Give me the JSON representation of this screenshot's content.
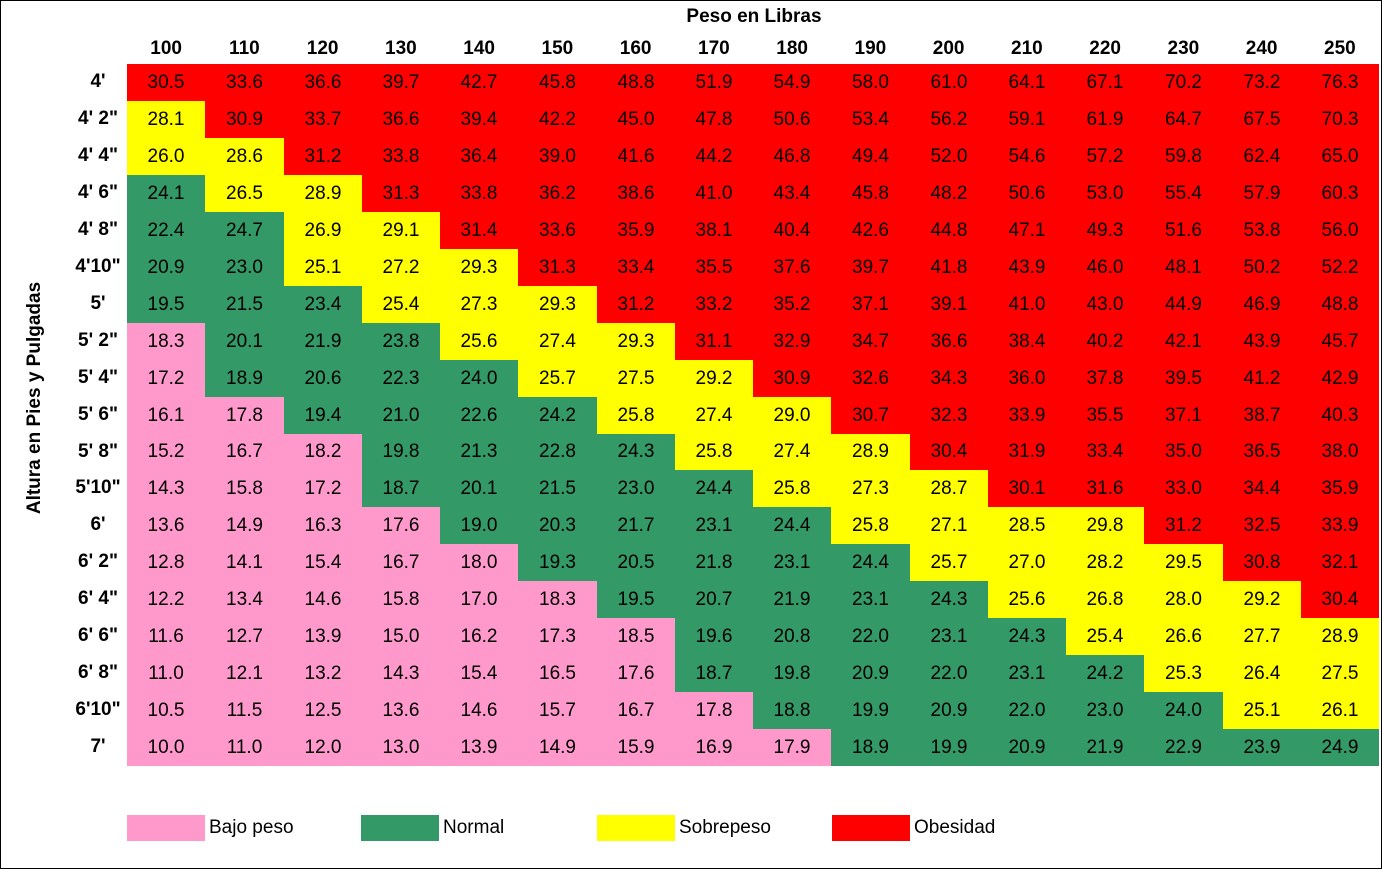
{
  "chart_data": {
    "type": "table",
    "title": "Peso en Libras",
    "ylabel": "Altura en Pies y Pulgadas",
    "columns": [
      "100",
      "110",
      "120",
      "130",
      "140",
      "150",
      "160",
      "170",
      "180",
      "190",
      "200",
      "210",
      "220",
      "230",
      "240",
      "250"
    ],
    "rows": [
      "4'",
      "4' 2\"",
      "4' 4\"",
      "4' 6\"",
      "4' 8\"",
      "4'10\"",
      "5'",
      "5' 2\"",
      "5' 4\"",
      "5' 6\"",
      "5' 8\"",
      "5'10\"",
      "6'",
      "6' 2\"",
      "6' 4\"",
      "6' 6\"",
      "6' 8\"",
      "6'10\"",
      "7'"
    ],
    "values": [
      [
        "30.5",
        "33.6",
        "36.6",
        "39.7",
        "42.7",
        "45.8",
        "48.8",
        "51.9",
        "54.9",
        "58.0",
        "61.0",
        "64.1",
        "67.1",
        "70.2",
        "73.2",
        "76.3"
      ],
      [
        "28.1",
        "30.9",
        "33.7",
        "36.6",
        "39.4",
        "42.2",
        "45.0",
        "47.8",
        "50.6",
        "53.4",
        "56.2",
        "59.1",
        "61.9",
        "64.7",
        "67.5",
        "70.3"
      ],
      [
        "26.0",
        "28.6",
        "31.2",
        "33.8",
        "36.4",
        "39.0",
        "41.6",
        "44.2",
        "46.8",
        "49.4",
        "52.0",
        "54.6",
        "57.2",
        "59.8",
        "62.4",
        "65.0"
      ],
      [
        "24.1",
        "26.5",
        "28.9",
        "31.3",
        "33.8",
        "36.2",
        "38.6",
        "41.0",
        "43.4",
        "45.8",
        "48.2",
        "50.6",
        "53.0",
        "55.4",
        "57.9",
        "60.3"
      ],
      [
        "22.4",
        "24.7",
        "26.9",
        "29.1",
        "31.4",
        "33.6",
        "35.9",
        "38.1",
        "40.4",
        "42.6",
        "44.8",
        "47.1",
        "49.3",
        "51.6",
        "53.8",
        "56.0"
      ],
      [
        "20.9",
        "23.0",
        "25.1",
        "27.2",
        "29.3",
        "31.3",
        "33.4",
        "35.5",
        "37.6",
        "39.7",
        "41.8",
        "43.9",
        "46.0",
        "48.1",
        "50.2",
        "52.2"
      ],
      [
        "19.5",
        "21.5",
        "23.4",
        "25.4",
        "27.3",
        "29.3",
        "31.2",
        "33.2",
        "35.2",
        "37.1",
        "39.1",
        "41.0",
        "43.0",
        "44.9",
        "46.9",
        "48.8"
      ],
      [
        "18.3",
        "20.1",
        "21.9",
        "23.8",
        "25.6",
        "27.4",
        "29.3",
        "31.1",
        "32.9",
        "34.7",
        "36.6",
        "38.4",
        "40.2",
        "42.1",
        "43.9",
        "45.7"
      ],
      [
        "17.2",
        "18.9",
        "20.6",
        "22.3",
        "24.0",
        "25.7",
        "27.5",
        "29.2",
        "30.9",
        "32.6",
        "34.3",
        "36.0",
        "37.8",
        "39.5",
        "41.2",
        "42.9"
      ],
      [
        "16.1",
        "17.8",
        "19.4",
        "21.0",
        "22.6",
        "24.2",
        "25.8",
        "27.4",
        "29.0",
        "30.7",
        "32.3",
        "33.9",
        "35.5",
        "37.1",
        "38.7",
        "40.3"
      ],
      [
        "15.2",
        "16.7",
        "18.2",
        "19.8",
        "21.3",
        "22.8",
        "24.3",
        "25.8",
        "27.4",
        "28.9",
        "30.4",
        "31.9",
        "33.4",
        "35.0",
        "36.5",
        "38.0"
      ],
      [
        "14.3",
        "15.8",
        "17.2",
        "18.7",
        "20.1",
        "21.5",
        "23.0",
        "24.4",
        "25.8",
        "27.3",
        "28.7",
        "30.1",
        "31.6",
        "33.0",
        "34.4",
        "35.9"
      ],
      [
        "13.6",
        "14.9",
        "16.3",
        "17.6",
        "19.0",
        "20.3",
        "21.7",
        "23.1",
        "24.4",
        "25.8",
        "27.1",
        "28.5",
        "29.8",
        "31.2",
        "32.5",
        "33.9"
      ],
      [
        "12.8",
        "14.1",
        "15.4",
        "16.7",
        "18.0",
        "19.3",
        "20.5",
        "21.8",
        "23.1",
        "24.4",
        "25.7",
        "27.0",
        "28.2",
        "29.5",
        "30.8",
        "32.1"
      ],
      [
        "12.2",
        "13.4",
        "14.6",
        "15.8",
        "17.0",
        "18.3",
        "19.5",
        "20.7",
        "21.9",
        "23.1",
        "24.3",
        "25.6",
        "26.8",
        "28.0",
        "29.2",
        "30.4"
      ],
      [
        "11.6",
        "12.7",
        "13.9",
        "15.0",
        "16.2",
        "17.3",
        "18.5",
        "19.6",
        "20.8",
        "22.0",
        "23.1",
        "24.3",
        "25.4",
        "26.6",
        "27.7",
        "28.9"
      ],
      [
        "11.0",
        "12.1",
        "13.2",
        "14.3",
        "15.4",
        "16.5",
        "17.6",
        "18.7",
        "19.8",
        "20.9",
        "22.0",
        "23.1",
        "24.2",
        "25.3",
        "26.4",
        "27.5"
      ],
      [
        "10.5",
        "11.5",
        "12.5",
        "13.6",
        "14.6",
        "15.7",
        "16.7",
        "17.8",
        "18.8",
        "19.9",
        "20.9",
        "22.0",
        "23.0",
        "24.0",
        "25.1",
        "26.1"
      ],
      [
        "10.0",
        "11.0",
        "12.0",
        "13.0",
        "13.9",
        "14.9",
        "15.9",
        "16.9",
        "17.9",
        "18.9",
        "19.9",
        "20.9",
        "21.9",
        "22.9",
        "23.9",
        "24.9"
      ]
    ],
    "categories": [
      [
        "O",
        "O",
        "O",
        "O",
        "O",
        "O",
        "O",
        "O",
        "O",
        "O",
        "O",
        "O",
        "O",
        "O",
        "O",
        "O"
      ],
      [
        "S",
        "O",
        "O",
        "O",
        "O",
        "O",
        "O",
        "O",
        "O",
        "O",
        "O",
        "O",
        "O",
        "O",
        "O",
        "O"
      ],
      [
        "S",
        "S",
        "O",
        "O",
        "O",
        "O",
        "O",
        "O",
        "O",
        "O",
        "O",
        "O",
        "O",
        "O",
        "O",
        "O"
      ],
      [
        "N",
        "S",
        "S",
        "O",
        "O",
        "O",
        "O",
        "O",
        "O",
        "O",
        "O",
        "O",
        "O",
        "O",
        "O",
        "O"
      ],
      [
        "N",
        "N",
        "S",
        "S",
        "O",
        "O",
        "O",
        "O",
        "O",
        "O",
        "O",
        "O",
        "O",
        "O",
        "O",
        "O"
      ],
      [
        "N",
        "N",
        "S",
        "S",
        "S",
        "O",
        "O",
        "O",
        "O",
        "O",
        "O",
        "O",
        "O",
        "O",
        "O",
        "O"
      ],
      [
        "N",
        "N",
        "N",
        "S",
        "S",
        "S",
        "O",
        "O",
        "O",
        "O",
        "O",
        "O",
        "O",
        "O",
        "O",
        "O"
      ],
      [
        "U",
        "N",
        "N",
        "N",
        "S",
        "S",
        "S",
        "O",
        "O",
        "O",
        "O",
        "O",
        "O",
        "O",
        "O",
        "O"
      ],
      [
        "U",
        "N",
        "N",
        "N",
        "N",
        "S",
        "S",
        "S",
        "O",
        "O",
        "O",
        "O",
        "O",
        "O",
        "O",
        "O"
      ],
      [
        "U",
        "U",
        "N",
        "N",
        "N",
        "N",
        "S",
        "S",
        "S",
        "O",
        "O",
        "O",
        "O",
        "O",
        "O",
        "O"
      ],
      [
        "U",
        "U",
        "U",
        "N",
        "N",
        "N",
        "N",
        "S",
        "S",
        "S",
        "O",
        "O",
        "O",
        "O",
        "O",
        "O"
      ],
      [
        "U",
        "U",
        "U",
        "N",
        "N",
        "N",
        "N",
        "N",
        "S",
        "S",
        "S",
        "O",
        "O",
        "O",
        "O",
        "O"
      ],
      [
        "U",
        "U",
        "U",
        "U",
        "N",
        "N",
        "N",
        "N",
        "N",
        "S",
        "S",
        "S",
        "S",
        "O",
        "O",
        "O"
      ],
      [
        "U",
        "U",
        "U",
        "U",
        "U",
        "N",
        "N",
        "N",
        "N",
        "N",
        "S",
        "S",
        "S",
        "S",
        "O",
        "O"
      ],
      [
        "U",
        "U",
        "U",
        "U",
        "U",
        "U",
        "N",
        "N",
        "N",
        "N",
        "N",
        "S",
        "S",
        "S",
        "S",
        "O"
      ],
      [
        "U",
        "U",
        "U",
        "U",
        "U",
        "U",
        "U",
        "N",
        "N",
        "N",
        "N",
        "N",
        "S",
        "S",
        "S",
        "S"
      ],
      [
        "U",
        "U",
        "U",
        "U",
        "U",
        "U",
        "U",
        "N",
        "N",
        "N",
        "N",
        "N",
        "N",
        "S",
        "S",
        "S"
      ],
      [
        "U",
        "U",
        "U",
        "U",
        "U",
        "U",
        "U",
        "U",
        "N",
        "N",
        "N",
        "N",
        "N",
        "N",
        "S",
        "S"
      ],
      [
        "U",
        "U",
        "U",
        "U",
        "U",
        "U",
        "U",
        "U",
        "U",
        "N",
        "N",
        "N",
        "N",
        "N",
        "N",
        "N"
      ]
    ],
    "legend": [
      {
        "key": "U",
        "label": "Bajo peso",
        "color": "#ff99cc"
      },
      {
        "key": "N",
        "label": "Normal",
        "color": "#339966"
      },
      {
        "key": "S",
        "label": "Sobrepeso",
        "color": "#ffff00"
      },
      {
        "key": "O",
        "label": "Obesidad",
        "color": "#ff0000"
      }
    ]
  }
}
